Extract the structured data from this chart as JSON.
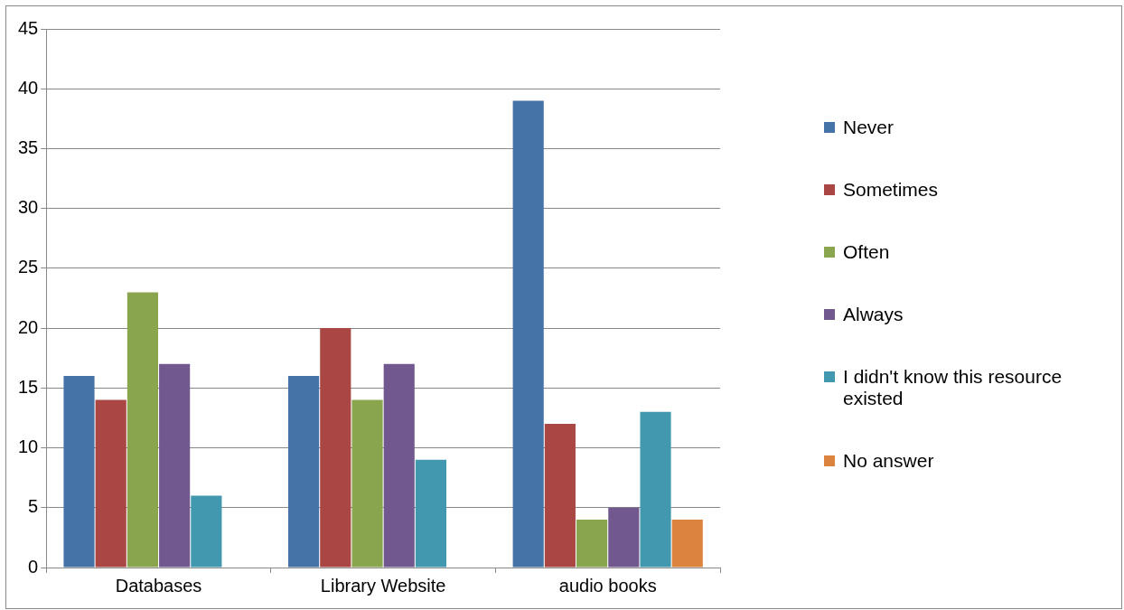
{
  "chart_data": {
    "type": "bar",
    "categories": [
      "Databases",
      "Library Website",
      "audio books"
    ],
    "series": [
      {
        "name": "Never",
        "color": "#4572a7",
        "values": [
          16,
          16,
          39
        ]
      },
      {
        "name": "Sometimes",
        "color": "#aa4643",
        "values": [
          14,
          20,
          12
        ]
      },
      {
        "name": "Often",
        "color": "#89a54e",
        "values": [
          23,
          14,
          4
        ]
      },
      {
        "name": "Always",
        "color": "#71588f",
        "values": [
          17,
          17,
          5
        ]
      },
      {
        "name": "I didn't know this resource existed",
        "color": "#4198af",
        "values": [
          6,
          9,
          13
        ]
      },
      {
        "name": "No answer",
        "color": "#db843d",
        "values": [
          null,
          null,
          4
        ]
      }
    ],
    "ylim": [
      0,
      45
    ],
    "yticks": [
      0,
      5,
      10,
      15,
      20,
      25,
      30,
      35,
      40,
      45
    ],
    "grid": "y",
    "legend": "right"
  }
}
